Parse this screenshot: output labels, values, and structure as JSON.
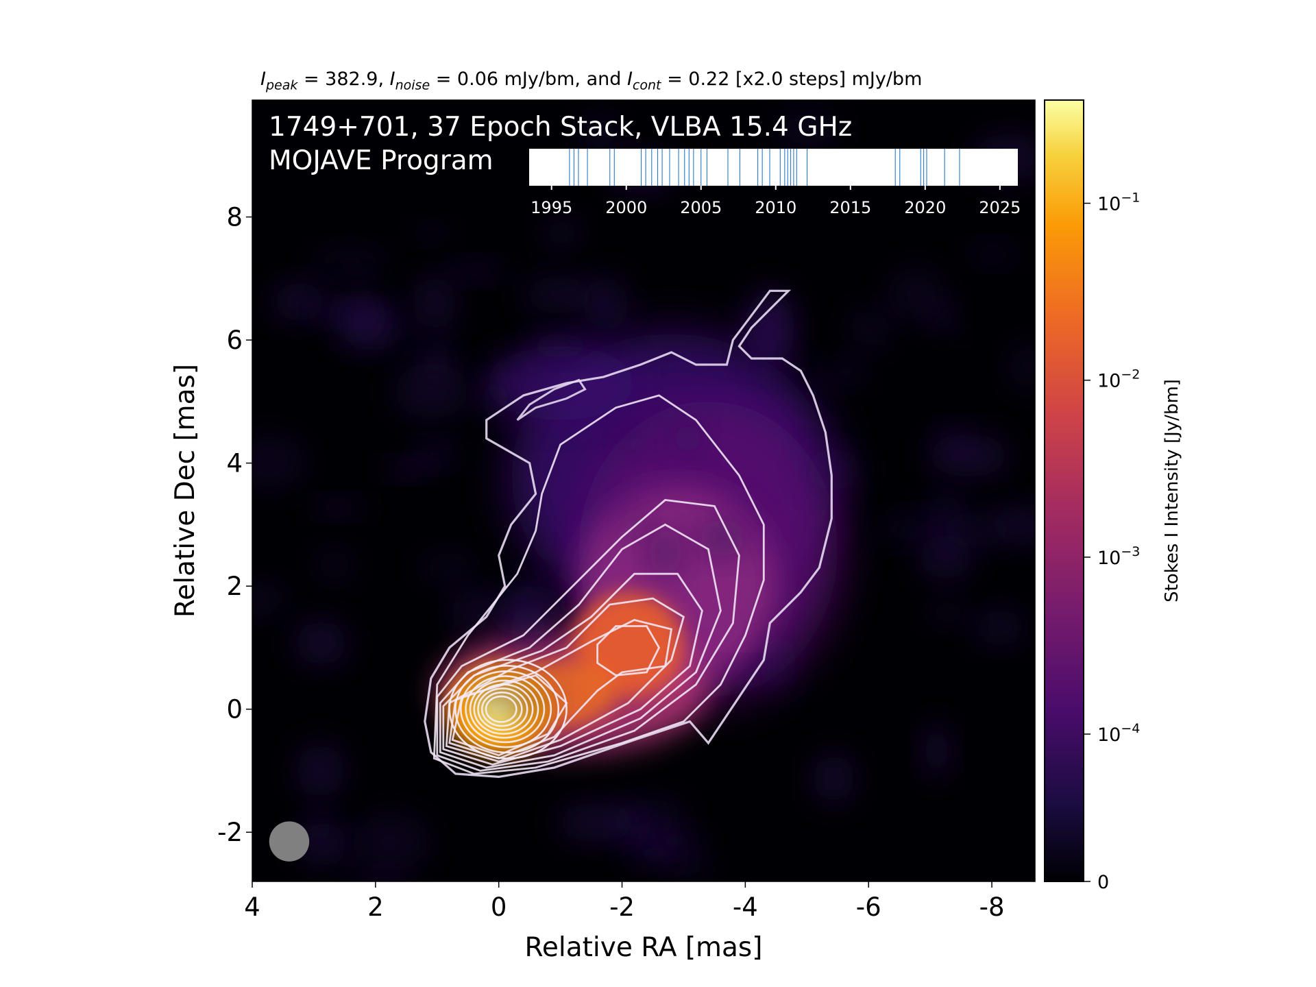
{
  "title_parts": {
    "peak_sym": "I",
    "peak_sub": "peak",
    "peak_val": " = 382.9, ",
    "noise_sym": "I",
    "noise_sub": "noise",
    "noise_val": " = 0.06 mJy/bm, and ",
    "cont_sym": "I",
    "cont_sub": "cont",
    "cont_val": " = 0.22 [x2.0 steps] mJy/bm"
  },
  "chart_data": {
    "type": "heatmap",
    "annotation_line1": "1749+701, 37 Epoch Stack, VLBA 15.4 GHz",
    "annotation_line2": "MOJAVE Program",
    "xlabel": "Relative RA [mas]",
    "ylabel": "Relative Dec [mas]",
    "xlim": [
      4,
      -8.7
    ],
    "ylim": [
      -2.8,
      9.9
    ],
    "xticks": [
      4,
      2,
      0,
      -2,
      -4,
      -6,
      -8
    ],
    "yticks": [
      -2,
      0,
      2,
      4,
      6,
      8
    ],
    "colorbar": {
      "label": "Stokes I Intensity [Jy/bm]",
      "scale": "log",
      "colormap": "inferno",
      "ticks": [
        {
          "value": 0.1,
          "base": "10",
          "exp": "−1"
        },
        {
          "value": 0.01,
          "base": "10",
          "exp": "−2"
        },
        {
          "value": 0.001,
          "base": "10",
          "exp": "−3"
        },
        {
          "value": 0.0001,
          "base": "10",
          "exp": "−4"
        },
        {
          "value": 0,
          "base": "0",
          "exp": ""
        }
      ]
    },
    "components": [
      {
        "ra": 0.0,
        "dec": 0.0,
        "peak_jy": 0.3829,
        "sigma_mas": 0.45
      },
      {
        "ra": -2.1,
        "dec": 1.0,
        "peak_jy": 0.045,
        "sigma_mas": 0.6
      },
      {
        "ra": -2.8,
        "dec": 1.7,
        "peak_jy": 0.008,
        "sigma_mas": 1.2
      },
      {
        "ra": -2.8,
        "dec": 3.6,
        "peak_jy": 0.0008,
        "sigma_mas": 1.7
      }
    ],
    "epoch_timeline": {
      "xlim": [
        1993.5,
        2026.2
      ],
      "ticks": [
        1995,
        2000,
        2005,
        2010,
        2015,
        2020,
        2025
      ],
      "epochs": [
        1996.2,
        1996.5,
        1996.8,
        1997.4,
        1998.9,
        1999.2,
        2001.0,
        2001.3,
        2001.7,
        2002.1,
        2002.4,
        2002.9,
        2003.5,
        2003.9,
        2004.2,
        2004.5,
        2005.0,
        2005.4,
        2006.8,
        2007.6,
        2008.8,
        2009.1,
        2009.6,
        2010.3,
        2010.6,
        2010.8,
        2011.0,
        2011.2,
        2011.4,
        2012.1,
        2018.0,
        2018.3,
        2019.7,
        2019.9,
        2020.1,
        2021.3,
        2022.3
      ]
    },
    "beam": {
      "ra": 3.4,
      "dec": -2.15,
      "diameter_mas": 0.65,
      "color": "#808080"
    }
  }
}
